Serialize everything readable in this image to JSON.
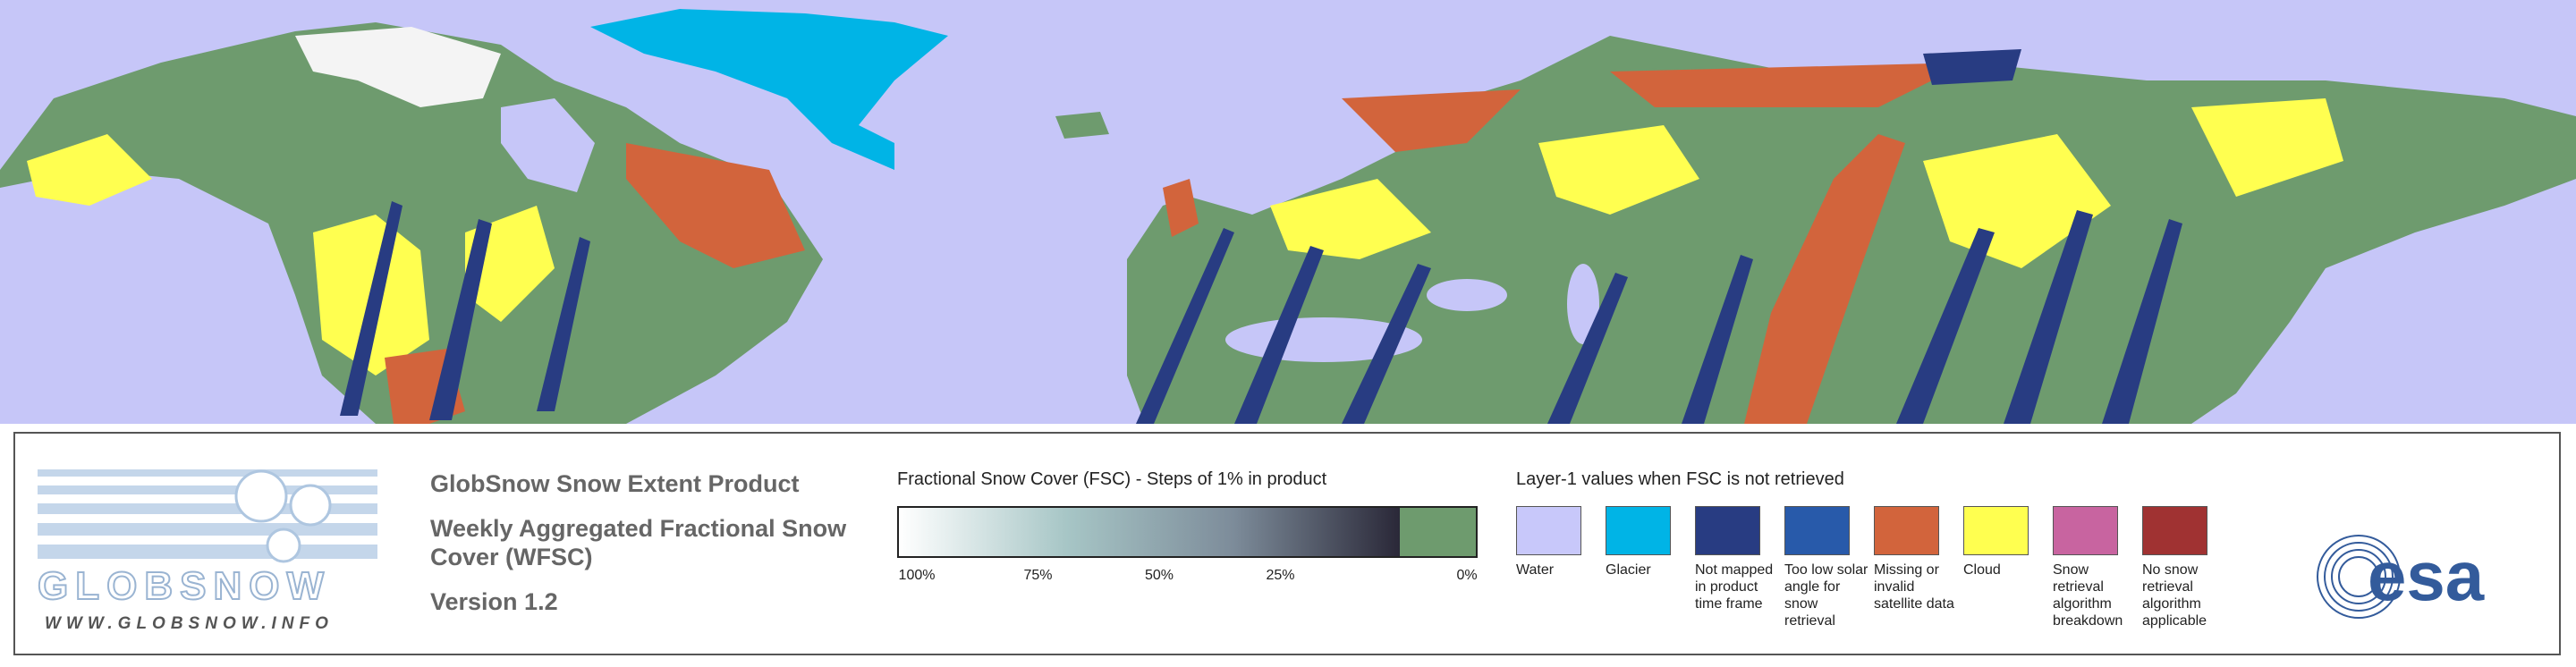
{
  "header": {
    "title": "GlobSnow Snow Extent Product",
    "subtitle": "Weekly Aggregated Fractional Snow Cover (WFSC)",
    "version": "Version 1.2"
  },
  "logo": {
    "name": "GLOBSNOW",
    "url": "WWW.GLOBSNOW.INFO"
  },
  "esa_logo": "esa",
  "colorbar": {
    "title": "Fractional Snow Cover (FSC) - Steps of 1% in product",
    "ticks": [
      "100%",
      "75%",
      "50%",
      "25%",
      "0%"
    ],
    "gradient": [
      "#ffffff",
      "#a7c6c6",
      "#7d8c9a",
      "#2a2838"
    ],
    "zero_color": "#6e9b6e"
  },
  "layer1": {
    "title": "Layer-1 values when FSC is not retrieved",
    "items": [
      {
        "label": "Water",
        "color": "#c8c8fa"
      },
      {
        "label": "Glacier",
        "color": "#00b4e6"
      },
      {
        "label": "Not mapped in product time frame",
        "color": "#283c82"
      },
      {
        "label": "Too low solar angle for snow retrieval",
        "color": "#285aaa"
      },
      {
        "label": "Missing or invalid satellite data",
        "color": "#d2643c"
      },
      {
        "label": "Cloud",
        "color": "#ffff50"
      },
      {
        "label": "Snow retrieval algorithm breakdown",
        "color": "#c864a0"
      },
      {
        "label": "No snow retrieval algorithm applicable",
        "color": "#a03232"
      }
    ]
  }
}
